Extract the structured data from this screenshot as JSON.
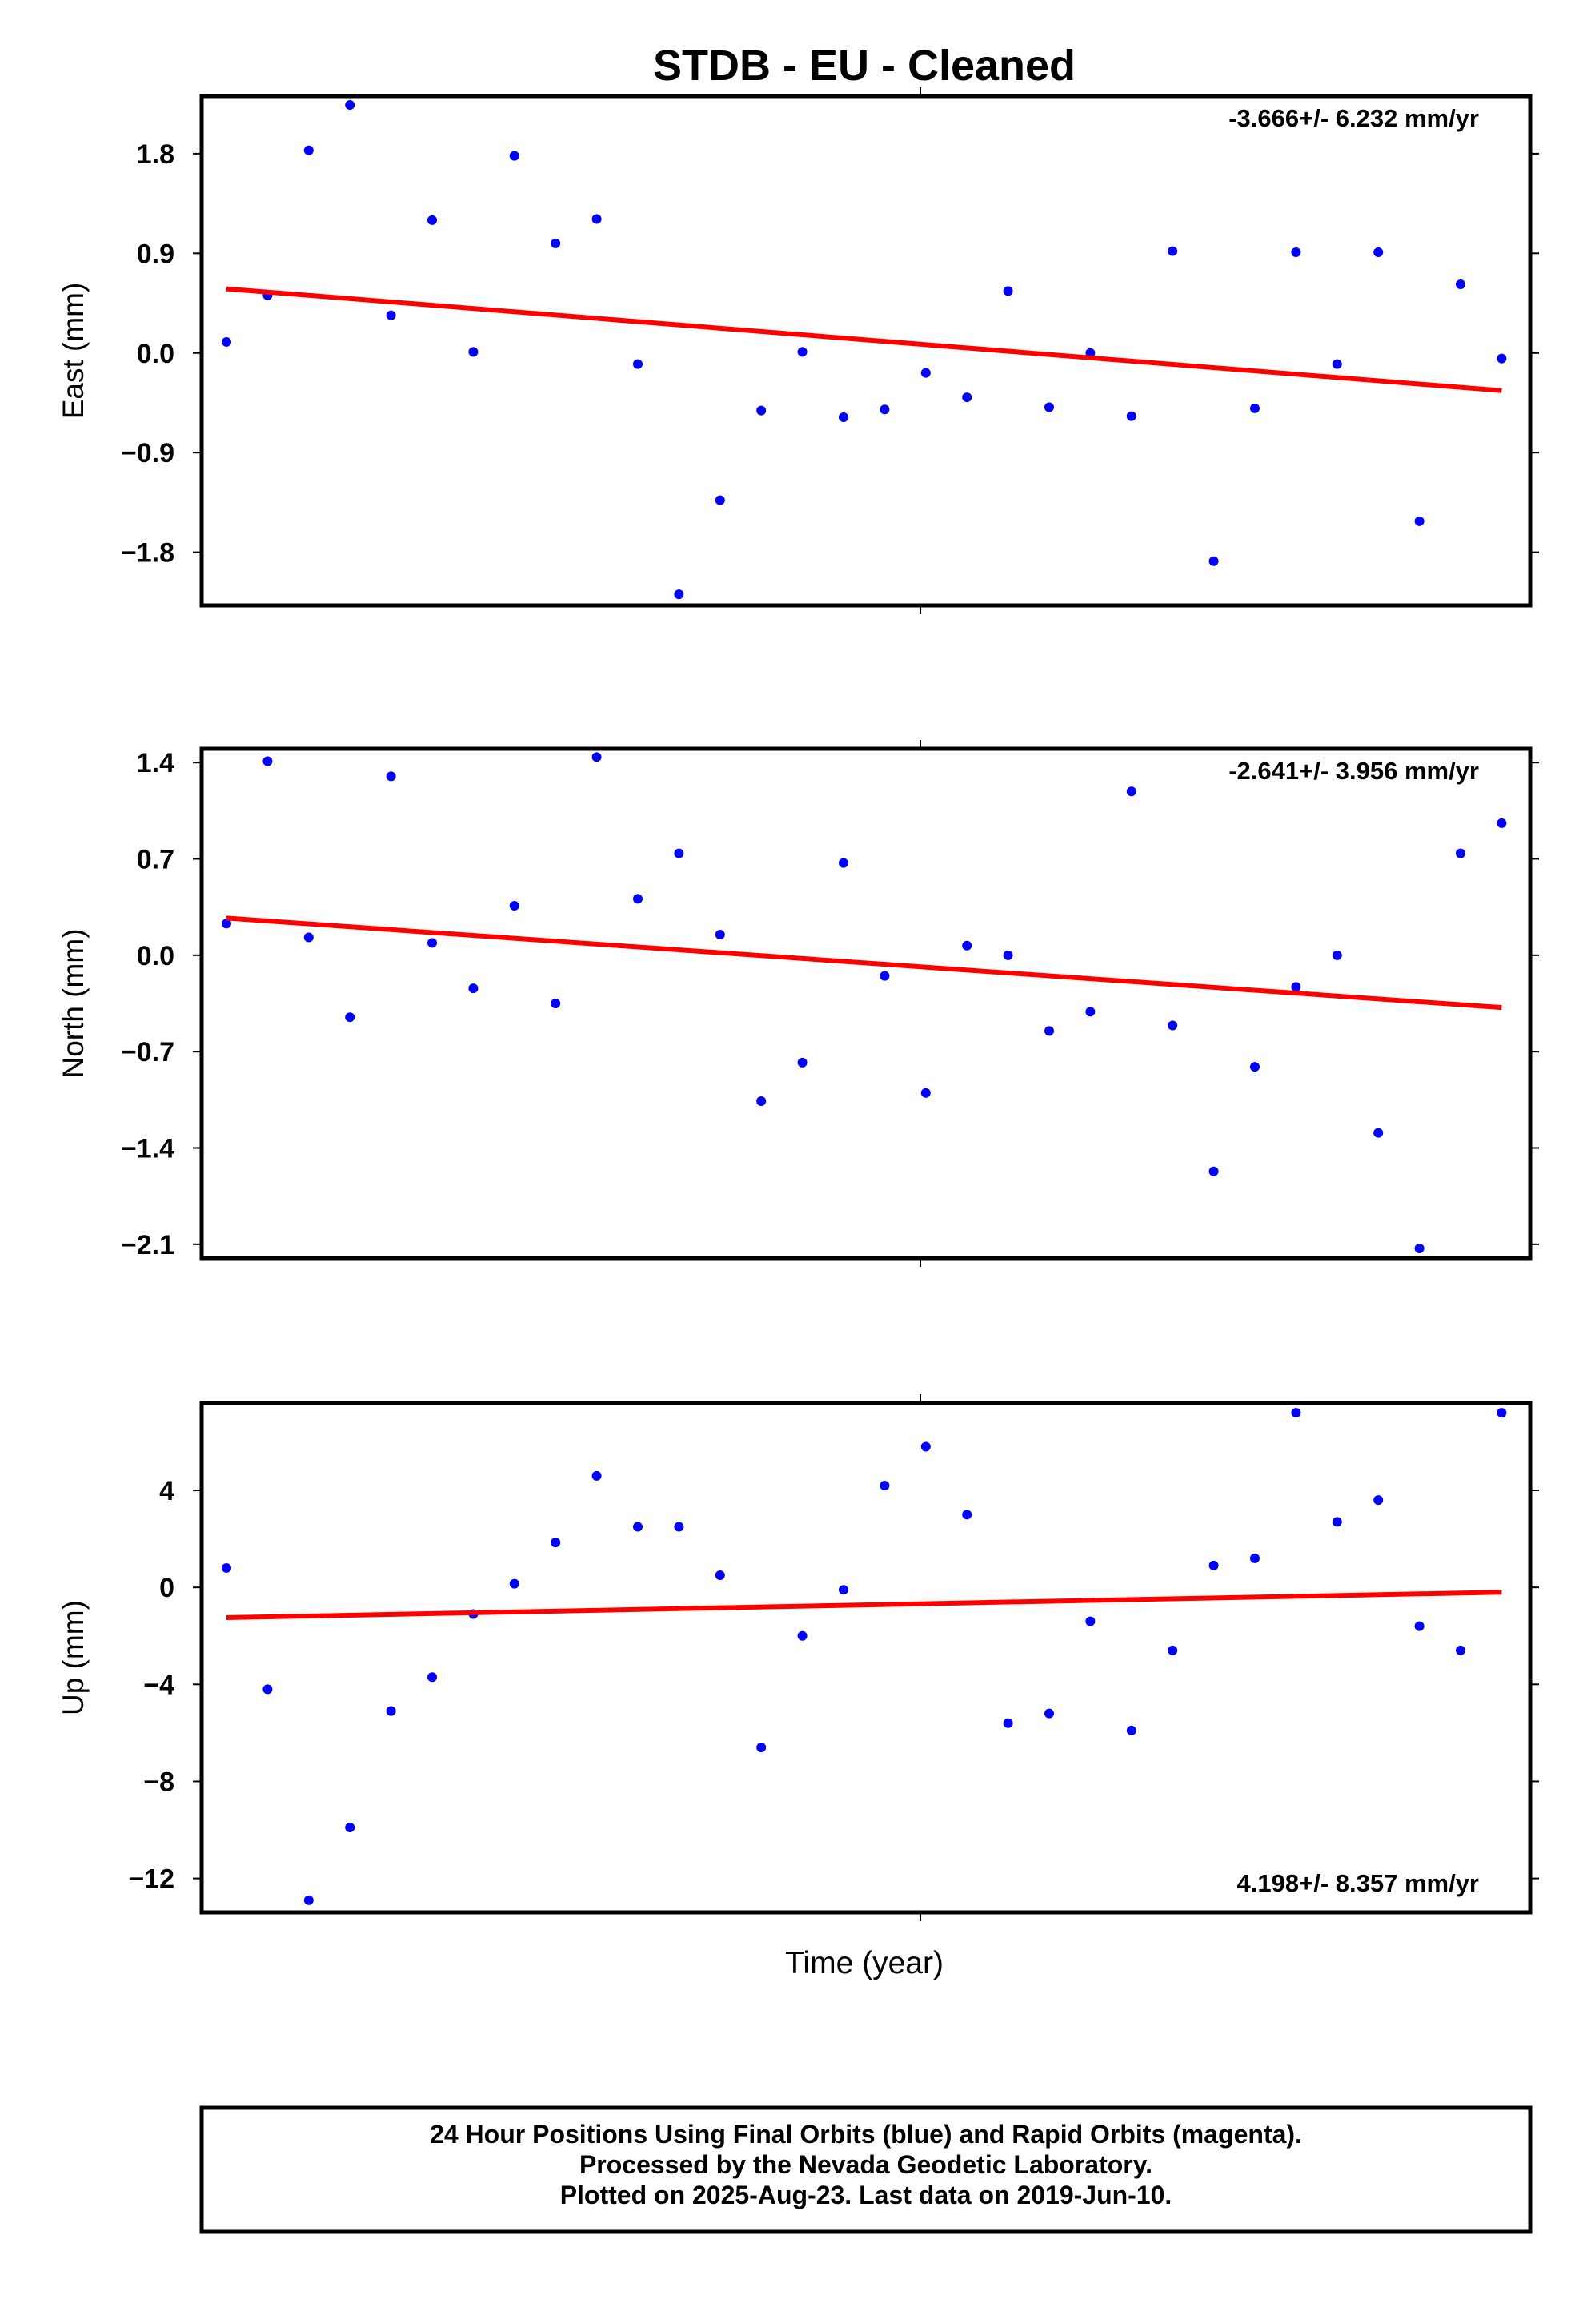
{
  "title": "STDB  - EU - Cleaned",
  "xlabel": "Time (year)",
  "footer": [
    "24 Hour Positions Using Final Orbits (blue) and Rapid Orbits (magenta).",
    "Processed by the Nevada Geodetic Laboratory.",
    "Plotted on 2025-Aug-23. Last data on 2019-Jun-10."
  ],
  "colors": {
    "points": "#0000ff",
    "trend": "#ff0000",
    "frame": "#000000"
  },
  "chart_data": [
    {
      "type": "scatter",
      "name": "east",
      "ylabel": "East (mm)",
      "rate_label": "-3.666+/- 6.232 mm/yr",
      "rate_position": "top-right",
      "ylim": [
        -2.28,
        2.32
      ],
      "yticks": [
        1.8,
        0.9,
        0.0,
        -0.9,
        -1.8
      ],
      "ytick_labels": [
        "1.8",
        "0.9",
        "0.0",
        "−0.9",
        "−1.8"
      ],
      "x": [
        0,
        1,
        2,
        3,
        4,
        5,
        6,
        7,
        8,
        9,
        10,
        11,
        12,
        13,
        14,
        15,
        16,
        17,
        18,
        19,
        20,
        21,
        22,
        23,
        24,
        25,
        26,
        27,
        28,
        29,
        30,
        31
      ],
      "values": [
        0.1,
        0.52,
        1.83,
        2.24,
        0.34,
        1.2,
        0.01,
        1.78,
        0.99,
        1.21,
        -0.1,
        -2.18,
        -1.33,
        -0.52,
        0.01,
        -0.58,
        -0.51,
        -0.18,
        -0.4,
        0.56,
        -0.49,
        0.0,
        -0.57,
        0.92,
        -1.88,
        -0.5,
        0.91,
        -0.1,
        0.91,
        -1.52,
        0.62,
        -0.05
      ],
      "trend": {
        "x": [
          0,
          31
        ],
        "y": [
          0.58,
          -0.34
        ]
      }
    },
    {
      "type": "scatter",
      "name": "north",
      "ylabel": "North (mm)",
      "rate_label": "-2.641+/- 3.956 mm/yr",
      "rate_position": "top-right",
      "ylim": [
        -2.2,
        1.5
      ],
      "yticks": [
        1.4,
        0.7,
        0.0,
        -0.7,
        -1.4,
        -2.1
      ],
      "ytick_labels": [
        "1.4",
        "0.7",
        "0.0",
        "−0.7",
        "−1.4",
        "−2.1"
      ],
      "x": [
        0,
        1,
        2,
        3,
        4,
        5,
        6,
        7,
        8,
        9,
        10,
        11,
        12,
        13,
        14,
        15,
        16,
        17,
        18,
        19,
        20,
        21,
        22,
        23,
        24,
        25,
        26,
        27,
        28,
        29,
        30,
        31
      ],
      "values": [
        0.23,
        1.41,
        0.13,
        -0.45,
        1.3,
        0.09,
        -0.24,
        0.36,
        -0.35,
        1.44,
        0.41,
        0.74,
        0.15,
        -1.06,
        -0.78,
        0.67,
        -0.15,
        -1.0,
        0.07,
        0.0,
        -0.55,
        -0.41,
        1.19,
        -0.51,
        -1.57,
        -0.81,
        -0.23,
        0.0,
        -1.29,
        -2.13,
        0.74,
        0.96
      ],
      "trend": {
        "x": [
          0,
          31
        ],
        "y": [
          0.27,
          -0.38
        ]
      }
    },
    {
      "type": "scatter",
      "name": "up",
      "ylabel": "Up (mm)",
      "rate_label": "4.198+/- 8.357 mm/yr",
      "rate_position": "bottom-right",
      "ylim": [
        -13.4,
        7.6
      ],
      "yticks": [
        4,
        0,
        -4,
        -8,
        -12
      ],
      "ytick_labels": [
        "4",
        "0",
        "−4",
        "−8",
        "−12"
      ],
      "x": [
        0,
        1,
        2,
        3,
        4,
        5,
        6,
        7,
        8,
        9,
        10,
        11,
        12,
        13,
        14,
        15,
        16,
        17,
        18,
        19,
        20,
        21,
        22,
        23,
        24,
        25,
        26,
        27,
        28,
        29,
        30,
        31
      ],
      "values": [
        0.8,
        -4.2,
        -12.9,
        -9.9,
        -5.1,
        -3.7,
        -1.1,
        0.15,
        1.85,
        4.6,
        2.5,
        2.5,
        0.5,
        -6.6,
        -2.0,
        -0.1,
        4.2,
        5.8,
        3.0,
        -5.6,
        -5.2,
        -1.4,
        -5.9,
        -2.6,
        0.9,
        1.2,
        7.2,
        2.7,
        3.6,
        -1.6,
        -2.6,
        7.2
      ],
      "trend": {
        "x": [
          0,
          31
        ],
        "y": [
          -1.25,
          -0.2
        ]
      }
    }
  ]
}
